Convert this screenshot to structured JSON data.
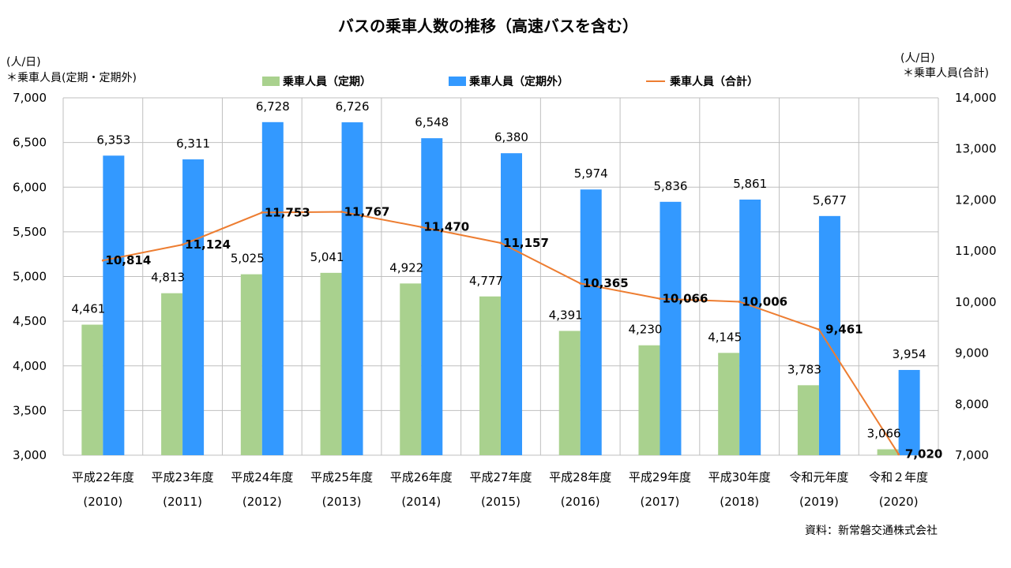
{
  "chart_data": {
    "type": "bar+line",
    "title": "バスの乗車人数の推移（高速バスを含む）",
    "categories": [
      "平成22年度",
      "平成23年度",
      "平成24年度",
      "平成25年度",
      "平成26年度",
      "平成27年度",
      "平成28年度",
      "平成29年度",
      "平成30年度",
      "令和元年度",
      "令和２年度"
    ],
    "years": [
      "(2010)",
      "(2011)",
      "(2012)",
      "(2013)",
      "(2014)",
      "(2015)",
      "(2016)",
      "(2017)",
      "(2018)",
      "(2019)",
      "(2020)"
    ],
    "series": [
      {
        "name": "乗車人員（定期）",
        "type": "bar",
        "axis": "left",
        "color": "#a9d18e",
        "values": [
          4461,
          4813,
          5025,
          5041,
          4922,
          4777,
          4391,
          4230,
          4145,
          3783,
          3066
        ],
        "labels": [
          "4,461",
          "4,813",
          "5,025",
          "5,041",
          "4,922",
          "4,777",
          "4,391",
          "4,230",
          "4,145",
          "3,783",
          "3,066"
        ]
      },
      {
        "name": "乗車人員（定期外）",
        "type": "bar",
        "axis": "left",
        "color": "#3399ff",
        "values": [
          6353,
          6311,
          6728,
          6726,
          6548,
          6380,
          5974,
          5836,
          5861,
          5677,
          3954
        ],
        "labels": [
          "6,353",
          "6,311",
          "6,728",
          "6,726",
          "6,548",
          "6,380",
          "5,974",
          "5,836",
          "5,861",
          "5,677",
          "3,954"
        ]
      },
      {
        "name": "乗車人員（合計）",
        "type": "line",
        "axis": "right",
        "color": "#ed7d31",
        "values": [
          10814,
          11124,
          11753,
          11767,
          11470,
          11157,
          10365,
          10066,
          10006,
          9461,
          7020
        ],
        "labels": [
          "10,814",
          "11,124",
          "11,753",
          "11,767",
          "11,470",
          "11,157",
          "10,365",
          "10,066",
          "10,006",
          "9,461",
          "7,020"
        ]
      }
    ],
    "y_left": {
      "range": [
        3000,
        7000
      ],
      "ticks": [
        3000,
        3500,
        4000,
        4500,
        5000,
        5500,
        6000,
        6500,
        7000
      ],
      "tick_labels": [
        "3,000",
        "3,500",
        "4,000",
        "4,500",
        "5,000",
        "5,500",
        "6,000",
        "6,500",
        "7,000"
      ],
      "unit": "(人/日)",
      "note": "＊乗車人員(定期・定期外)"
    },
    "y_right": {
      "range": [
        7000,
        14000
      ],
      "ticks": [
        7000,
        8000,
        9000,
        10000,
        11000,
        12000,
        13000,
        14000
      ],
      "tick_labels": [
        "7,000",
        "8,000",
        "9,000",
        "10,000",
        "11,000",
        "12,000",
        "13,000",
        "14,000"
      ],
      "unit": "(人/日)",
      "note": "＊乗車人員(合計)"
    },
    "grid": true,
    "legend_position": "top",
    "source": "資料：新常磐交通株式会社"
  }
}
